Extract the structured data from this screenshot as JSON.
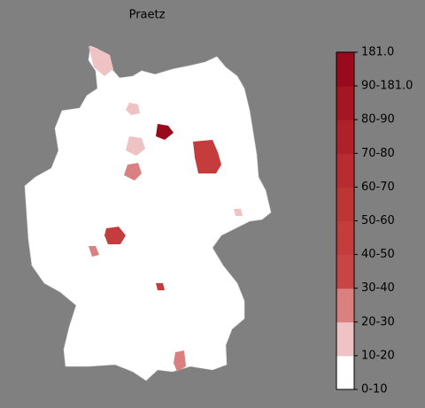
{
  "title": "Praetz",
  "colorbar": {
    "labels": [
      "0-10",
      "10-20",
      "20-30",
      "30-40",
      "40-50",
      "50-60",
      "60-70",
      "70-80",
      "80-90",
      "90-181.0",
      "181.0"
    ],
    "colors": [
      "#ffffff",
      "#efc3c3",
      "#db8080",
      "#c84545",
      "#c43c3c",
      "#be3535",
      "#b82b30",
      "#ae2129",
      "#a41722",
      "#980a1c"
    ]
  }
}
